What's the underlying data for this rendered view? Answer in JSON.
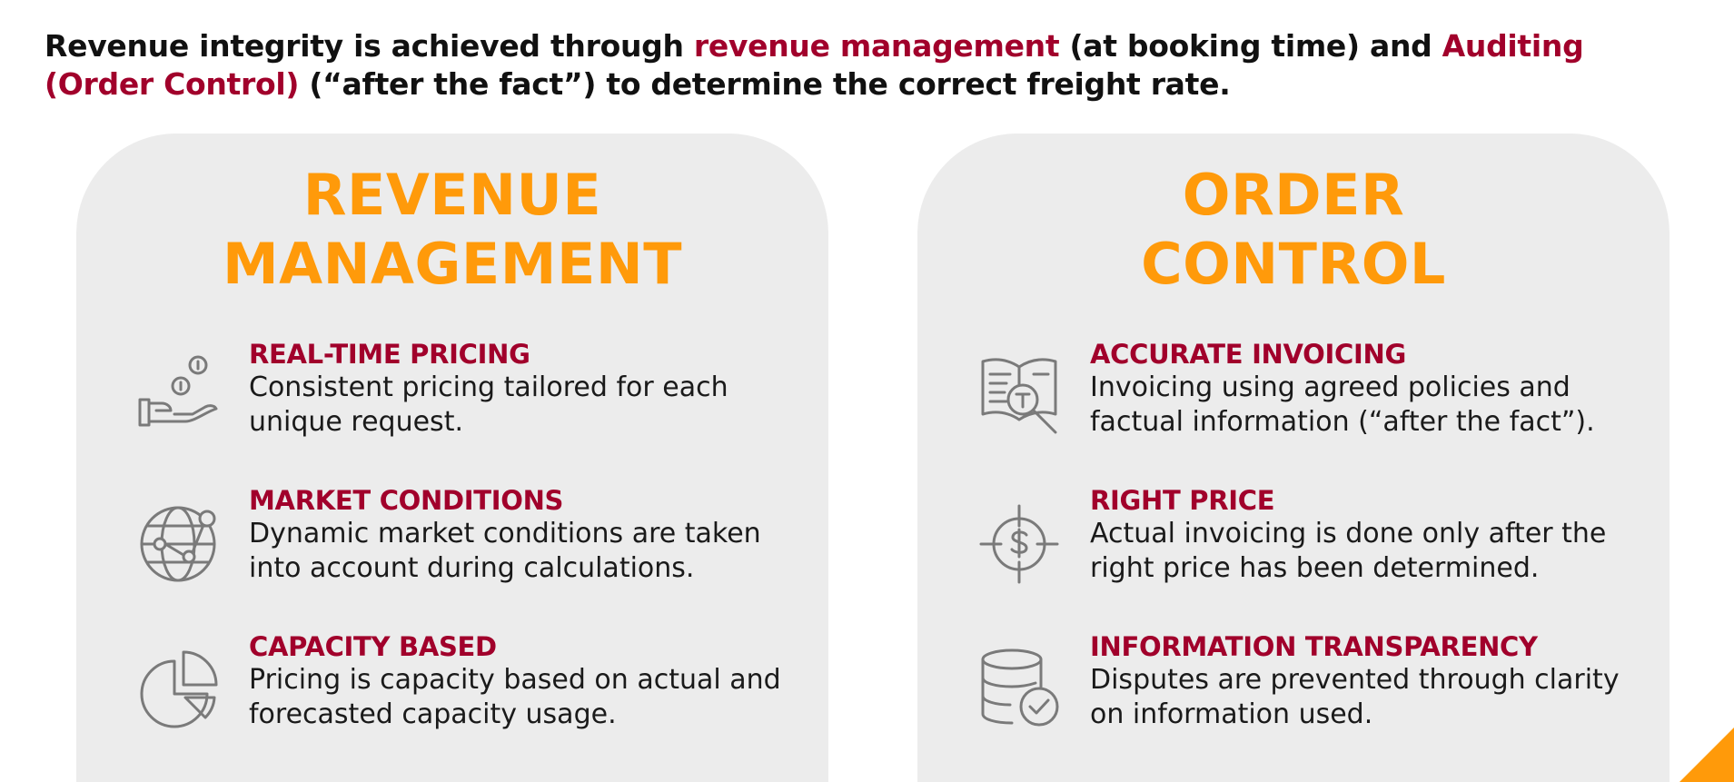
{
  "headline": {
    "part1": "Revenue integrity is achieved through ",
    "highlight1": "revenue management",
    "part2": " (at booking time) and ",
    "highlight2": "Auditing (Order Control)",
    "part3": " (“after the fact”) to determine the correct freight rate."
  },
  "left_panel": {
    "title_line1": "REVENUE",
    "title_line2": "MANAGEMENT",
    "items": [
      {
        "heading": "REAL-TIME PRICING",
        "description": "Consistent pricing tailored for each unique request.",
        "icon": "hand-coins-icon"
      },
      {
        "heading": "MARKET CONDITIONS",
        "description": "Dynamic market conditions are taken into account during calculations.",
        "icon": "globe-network-icon"
      },
      {
        "heading": "CAPACITY BASED",
        "description": "Pricing is capacity based on actual and forecasted capacity usage.",
        "icon": "pie-chart-icon"
      }
    ]
  },
  "right_panel": {
    "title_line1": "ORDER",
    "title_line2": "CONTROL",
    "items": [
      {
        "heading": "ACCURATE INVOICING",
        "description": "Invoicing using agreed policies and factual information (“after the fact”).",
        "icon": "book-magnifier-icon"
      },
      {
        "heading": "RIGHT PRICE",
        "description": "Actual invoicing is done only after the right price has been determined.",
        "icon": "dollar-target-icon"
      },
      {
        "heading": "INFORMATION TRANSPARENCY",
        "description": "Disputes are prevented through clarity on information used.",
        "icon": "database-check-icon"
      }
    ]
  },
  "colors": {
    "accent_red": "#a1002b",
    "accent_orange": "#ff9a0a",
    "panel_gray": "#ececec",
    "icon_gray": "#7a7a7a"
  }
}
